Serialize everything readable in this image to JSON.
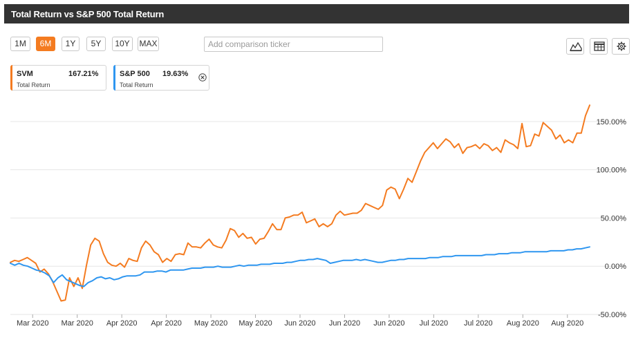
{
  "header": {
    "title": "Total Return vs S&P 500 Total Return"
  },
  "range_buttons": [
    {
      "label": "1M",
      "active": false
    },
    {
      "label": "6M",
      "active": true
    },
    {
      "label": "1Y",
      "active": false
    },
    {
      "label": "5Y",
      "active": false
    },
    {
      "label": "10Y",
      "active": false
    },
    {
      "label": "MAX",
      "active": false
    }
  ],
  "comparison": {
    "placeholder": "Add comparison ticker",
    "value": ""
  },
  "toolbar": {
    "icons": [
      "mountain-chart-icon",
      "table-icon",
      "gear-icon"
    ]
  },
  "legend": [
    {
      "symbol": "SVM",
      "value": "167.21%",
      "sublabel": "Total Return",
      "color": "#f47b20"
    },
    {
      "symbol": "S&P 500",
      "value": "19.63%",
      "sublabel": "Total Return",
      "color": "#2e96f0",
      "removable": true
    }
  ],
  "chart_data": {
    "type": "line",
    "title": "Total Return vs S&P 500 Total Return",
    "ylim": [
      -50,
      175
    ],
    "y_ticks": [
      -50,
      0,
      50,
      100,
      150
    ],
    "y_tick_labels": [
      "-50.00%",
      "0.00%",
      "50.00%",
      "100.00%",
      "150.00%"
    ],
    "x_tick_labels": [
      "Mar 2020",
      "Mar 2020",
      "Apr 2020",
      "Apr 2020",
      "May 2020",
      "May 2020",
      "Jun 2020",
      "Jun 2020",
      "Jun 2020",
      "Jul 2020",
      "Jul 2020",
      "Aug 2020",
      "Aug 2020"
    ],
    "x_tick_positions": [
      5,
      15,
      25,
      35,
      45,
      55,
      65,
      75,
      85,
      95,
      105,
      115,
      125
    ],
    "x_range": [
      0,
      130
    ],
    "grid": true,
    "series": [
      {
        "name": "SVM",
        "color": "#f47b20",
        "values": [
          4,
          6,
          5,
          7,
          9,
          6,
          3,
          -6,
          -3,
          -8,
          -16,
          -26,
          -36,
          -35,
          -12,
          -21,
          -12,
          -23,
          1,
          22,
          29,
          26,
          13,
          4,
          1,
          0,
          3,
          -1,
          8,
          6,
          5,
          19,
          26,
          22,
          15,
          12,
          4,
          8,
          5,
          12,
          13,
          12,
          24,
          20,
          20,
          19,
          24,
          28,
          22,
          20,
          19,
          27,
          39,
          37,
          30,
          34,
          29,
          30,
          23,
          28,
          29,
          36,
          44,
          38,
          38,
          50,
          51,
          53,
          53,
          56,
          45,
          47,
          49,
          41,
          44,
          41,
          44,
          53,
          57,
          53,
          54,
          55,
          55,
          58,
          65,
          63,
          61,
          59,
          63,
          79,
          82,
          80,
          70,
          80,
          91,
          87,
          98,
          109,
          118,
          123,
          128,
          122,
          127,
          132,
          129,
          123,
          127,
          117,
          123,
          124,
          126,
          122,
          127,
          125,
          120,
          123,
          118,
          131,
          128,
          126,
          122,
          148,
          124,
          125,
          137,
          135,
          149,
          145,
          141,
          132,
          136,
          128,
          131,
          128,
          138,
          138,
          156,
          167
        ]
      },
      {
        "name": "S&P 500",
        "color": "#2e96f0",
        "values": [
          3,
          1,
          3,
          1,
          0,
          -2,
          -4,
          -5,
          -7,
          -10,
          -17,
          -12,
          -9,
          -14,
          -16,
          -18,
          -20,
          -21,
          -17,
          -15,
          -12,
          -11,
          -13,
          -12,
          -14,
          -13,
          -11,
          -10,
          -10,
          -10,
          -9,
          -6,
          -6,
          -6,
          -5,
          -5,
          -6,
          -4,
          -4,
          -4,
          -4,
          -3,
          -2,
          -2,
          -2,
          -1,
          -1,
          -1,
          0,
          -1,
          -1,
          -1,
          0,
          1,
          0,
          1,
          1,
          1,
          2,
          2,
          2,
          3,
          3,
          3,
          4,
          4,
          5,
          6,
          6,
          7,
          7,
          8,
          7,
          6,
          3,
          4,
          5,
          6,
          6,
          6,
          7,
          6,
          7,
          6,
          5,
          4,
          4,
          5,
          6,
          6,
          7,
          7,
          8,
          8,
          8,
          8,
          8,
          9,
          9,
          9,
          10,
          10,
          10,
          11,
          11,
          11,
          11,
          11,
          11,
          11,
          12,
          12,
          12,
          13,
          13,
          13,
          14,
          14,
          14,
          15,
          15,
          15,
          15,
          15,
          15,
          16,
          16,
          16,
          16,
          17,
          17,
          18,
          18,
          19,
          20
        ]
      }
    ]
  }
}
